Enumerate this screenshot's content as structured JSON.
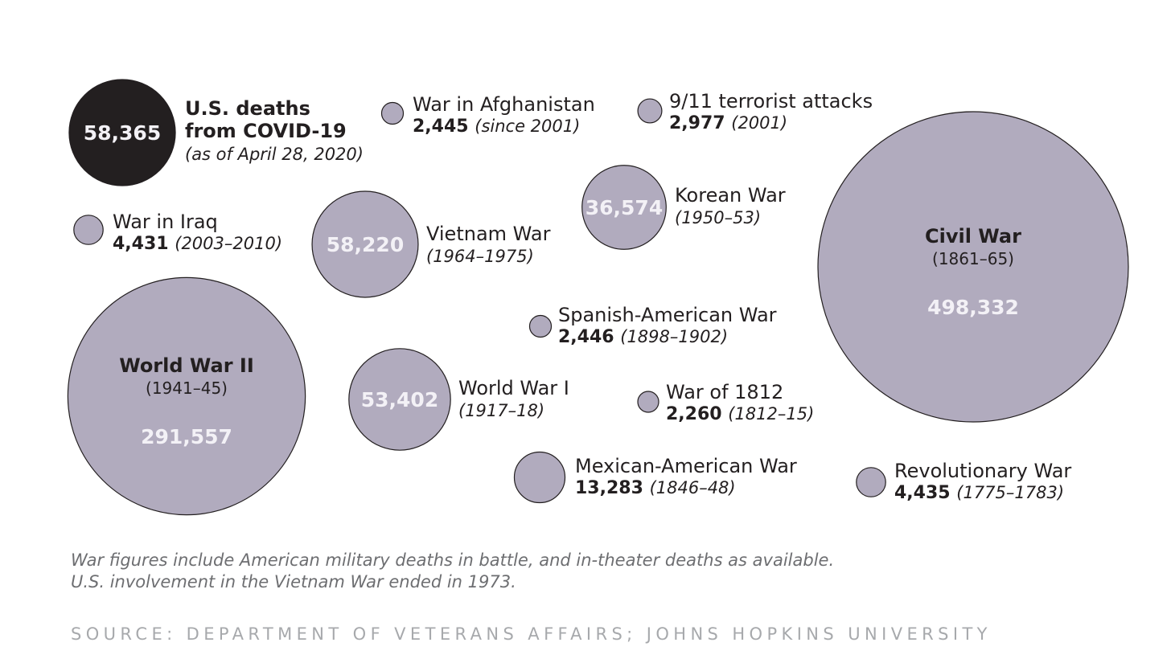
{
  "colors": {
    "covid_fill": "#231f20",
    "war_fill": "#b1abbe",
    "bubble_stroke": "#231f20",
    "inner_value_text": "#f3f1f6",
    "text": "#231f20",
    "footnote": "#6d6e71",
    "source": "#a7a9ac"
  },
  "chart_data": {
    "type": "bubble",
    "value_unit": "U.S. deaths",
    "items": [
      {
        "id": "covid",
        "name_lines": [
          "U.S. deaths",
          "from COVID-19"
        ],
        "value": 58365,
        "value_label": "58,365",
        "period": "(as of April 28, 2020)",
        "highlight": true
      },
      {
        "id": "afghanistan",
        "name": "War in Afghanistan",
        "value": 2445,
        "value_label": "2,445",
        "period": "(since 2001)"
      },
      {
        "id": "sept11",
        "name": "9/11 terrorist attacks",
        "value": 2977,
        "value_label": "2,977",
        "period": "(2001)"
      },
      {
        "id": "korean",
        "name": "Korean War",
        "value": 36574,
        "value_label": "36,574",
        "period": "(1950–53)"
      },
      {
        "id": "civil",
        "name": "Civil War",
        "value": 498332,
        "value_label": "498,332",
        "period": "(1861–65)"
      },
      {
        "id": "iraq",
        "name": "War in Iraq",
        "value": 4431,
        "value_label": "4,431",
        "period": "(2003–2010)"
      },
      {
        "id": "vietnam",
        "name": "Vietnam War",
        "value": 58220,
        "value_label": "58,220",
        "period": "(1964–1975)"
      },
      {
        "id": "spanish",
        "name": "Spanish-American War",
        "value": 2446,
        "value_label": "2,446",
        "period": "(1898–1902)"
      },
      {
        "id": "ww2",
        "name": "World War II",
        "value": 291557,
        "value_label": "291,557",
        "period": "(1941–45)"
      },
      {
        "id": "ww1",
        "name": "World War I",
        "value": 53402,
        "value_label": "53,402",
        "period": "(1917–18)"
      },
      {
        "id": "war1812",
        "name": "War of 1812",
        "value": 2260,
        "value_label": "2,260",
        "period": "(1812–15)"
      },
      {
        "id": "mexican",
        "name": "Mexican-American War",
        "value": 13283,
        "value_label": "13,283",
        "period": "(1846–48)"
      },
      {
        "id": "revolutionary",
        "name": "Revolutionary War",
        "value": 4435,
        "value_label": "4,435",
        "period": "(1775–1783)"
      }
    ]
  },
  "footnote": {
    "line1": "War figures include American military deaths in battle, and in-theater deaths as available.",
    "line2": "U.S. involvement in the Vietnam War ended in 1973."
  },
  "source": "SOURCE: DEPARTMENT OF VETERANS AFFAIRS; JOHNS HOPKINS UNIVERSITY"
}
